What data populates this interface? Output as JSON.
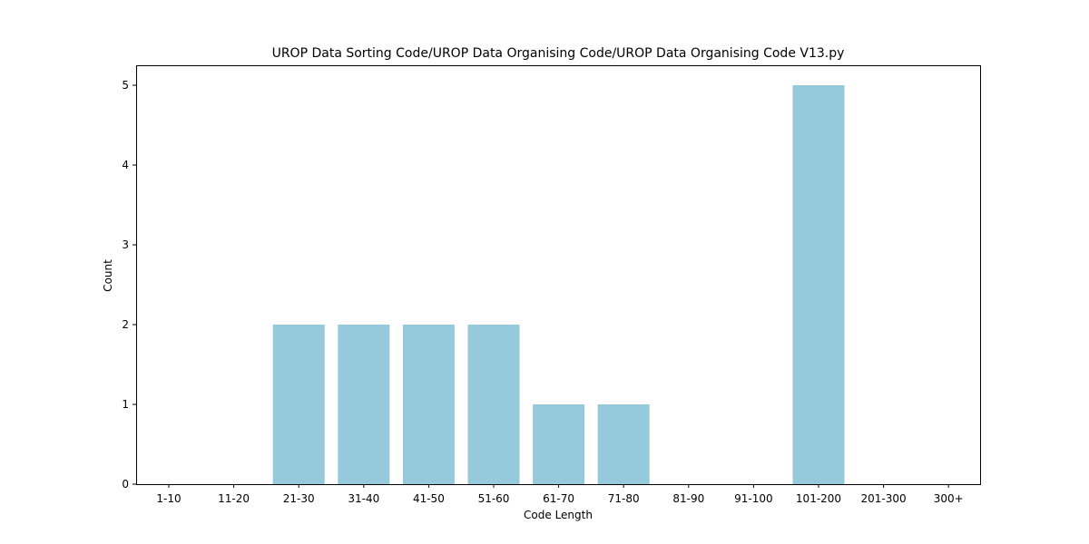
{
  "chart_data": {
    "type": "bar",
    "title": "UROP Data Sorting Code/UROP Data Organising Code/UROP Data Organising Code V13.py",
    "xlabel": "Code Length",
    "ylabel": "Count",
    "categories": [
      "1-10",
      "11-20",
      "21-30",
      "31-40",
      "41-50",
      "51-60",
      "61-70",
      "71-80",
      "81-90",
      "91-100",
      "101-200",
      "201-300",
      "300+"
    ],
    "values": [
      0,
      0,
      2,
      2,
      2,
      2,
      1,
      1,
      0,
      0,
      5,
      0,
      0
    ],
    "ylim": [
      0,
      5.25
    ],
    "yticks": [
      0,
      1,
      2,
      3,
      4,
      5
    ],
    "grid": false,
    "bar_color": "#96c9dc"
  }
}
